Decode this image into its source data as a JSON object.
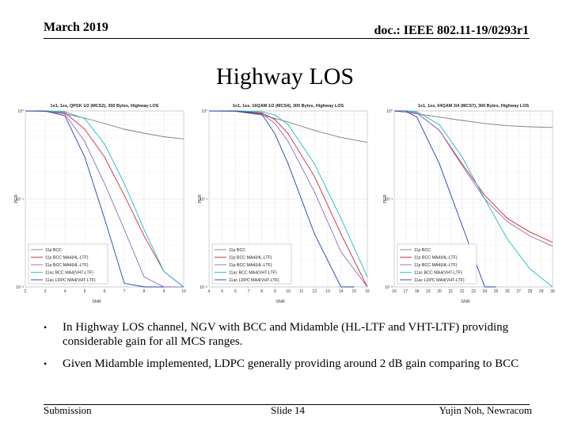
{
  "header": {
    "date": "March 2019",
    "doc_id": "doc.: IEEE 802.11-19/0293r1"
  },
  "slide_title": "Highway LOS",
  "colors": {
    "series": [
      "#7f7f7f",
      "#d62728",
      "#9467bd",
      "#17becf",
      "#1f3fbf",
      "#2b2b2b"
    ]
  },
  "chart_data": [
    {
      "type": "line",
      "title": "1x1, 1ss, QPSK 1/2 (MCS2), 300 Bytes, Highway LOS",
      "xlabel": "SNR",
      "ylabel": "PER",
      "xlim": [
        2,
        10
      ],
      "xticks": [
        2,
        3,
        4,
        5,
        6,
        7,
        8,
        9,
        10
      ],
      "ylim_log": [
        -2,
        0
      ],
      "yticks": [
        "10^0",
        "10^-1",
        "10^-2"
      ],
      "series": [
        {
          "name": "11p BCC",
          "x": [
            2,
            3,
            4,
            5,
            6,
            7,
            8,
            9,
            10
          ],
          "y": [
            1,
            0.99,
            0.93,
            0.83,
            0.72,
            0.62,
            0.56,
            0.51,
            0.48
          ]
        },
        {
          "name": "11p BCC MA4(HL-LTF)",
          "x": [
            2,
            3,
            4,
            5,
            6,
            7,
            8,
            9,
            10
          ],
          "y": [
            1,
            1,
            0.96,
            0.62,
            0.3,
            0.11,
            0.038,
            0.015,
            0.008
          ]
        },
        {
          "name": "11p BCC MA4(HL-LTF)",
          "x": [
            2,
            3,
            4,
            5,
            6,
            7,
            8,
            9,
            10
          ],
          "y": [
            1,
            1,
            0.92,
            0.45,
            0.15,
            0.045,
            0.013,
            0.005,
            0.002
          ]
        },
        {
          "name": "11ac BCC MA4(VHT-LTF)",
          "x": [
            2,
            3,
            4,
            5,
            6,
            7,
            8,
            9,
            10
          ],
          "y": [
            1,
            1,
            0.98,
            0.82,
            0.42,
            0.15,
            0.045,
            0.015,
            0.006
          ]
        },
        {
          "name": "11ac LDPC MA4(VHT-LTF)",
          "x": [
            2,
            3,
            4,
            5,
            6,
            7,
            8,
            9
          ],
          "y": [
            1,
            1,
            0.88,
            0.3,
            0.06,
            0.011,
            0.003,
            0.001
          ]
        }
      ]
    },
    {
      "type": "line",
      "title": "1x1, 1ss, 16QAM 1/2 (MCS4), 300 Bytes, Highway LOS",
      "xlabel": "SNR",
      "ylabel": "PER",
      "xlim": [
        4,
        16
      ],
      "xticks": [
        4,
        5,
        6,
        7,
        8,
        9,
        10,
        11,
        12,
        13,
        14,
        15,
        16
      ],
      "ylim_log": [
        -2,
        0
      ],
      "yticks": [
        "10^0",
        "10^-1",
        "10^-2"
      ],
      "series": [
        {
          "name": "11p BCC",
          "x": [
            4,
            6,
            8,
            10,
            12,
            14,
            16
          ],
          "y": [
            1,
            0.99,
            0.9,
            0.75,
            0.6,
            0.5,
            0.44
          ]
        },
        {
          "name": "11p BCC MA4(HL-LTF)",
          "x": [
            4,
            6,
            8,
            9,
            10,
            12,
            14,
            16
          ],
          "y": [
            1,
            1,
            0.95,
            0.8,
            0.55,
            0.18,
            0.04,
            0.009
          ]
        },
        {
          "name": "11p BCC MA4(HL-LTF)",
          "x": [
            4,
            6,
            8,
            9,
            10,
            12,
            14,
            16
          ],
          "y": [
            1,
            1,
            0.93,
            0.72,
            0.45,
            0.12,
            0.025,
            0.006
          ]
        },
        {
          "name": "11ac BCC MA4(VHT-LTF)",
          "x": [
            4,
            6,
            8,
            9,
            10,
            12,
            14,
            16
          ],
          "y": [
            1,
            1,
            0.98,
            0.9,
            0.7,
            0.25,
            0.06,
            0.013
          ]
        },
        {
          "name": "11ac LDPC MA4(VHT-LTF)",
          "x": [
            4,
            6,
            8,
            9,
            10,
            12,
            14,
            15
          ],
          "y": [
            1,
            1,
            0.92,
            0.55,
            0.25,
            0.04,
            0.006,
            0.002
          ]
        }
      ]
    },
    {
      "type": "line",
      "title": "1x1, 1ss, 64QAM 3/4 (MCS7), 300 Bytes, Highway LOS",
      "xlabel": "SNR",
      "ylabel": "PER",
      "xlim": [
        16,
        30
      ],
      "xticks": [
        16,
        17,
        18,
        19,
        20,
        21,
        22,
        23,
        24,
        25,
        26,
        27,
        28,
        29,
        30
      ],
      "ylim_log": [
        -2,
        0
      ],
      "yticks": [
        "10^0",
        "10^-1",
        "10^-2"
      ],
      "series": [
        {
          "name": "11p BCC",
          "x": [
            16,
            18,
            20,
            22,
            24,
            26,
            28,
            30
          ],
          "y": [
            1,
            0.93,
            0.85,
            0.78,
            0.72,
            0.68,
            0.66,
            0.65
          ]
        },
        {
          "name": "11p BCC MA4(HL-LTF)",
          "x": [
            16,
            17,
            18,
            20,
            22,
            24,
            26,
            28,
            30
          ],
          "y": [
            1,
            1,
            0.95,
            0.6,
            0.25,
            0.11,
            0.06,
            0.042,
            0.032
          ]
        },
        {
          "name": "11p BCC MA4(HL-LTF)",
          "x": [
            16,
            17,
            18,
            20,
            22,
            24,
            26,
            28,
            30
          ],
          "y": [
            1,
            1,
            0.95,
            0.6,
            0.24,
            0.1,
            0.055,
            0.038,
            0.029
          ]
        },
        {
          "name": "11ac BCC MA4(VHT-LTF)",
          "x": [
            16,
            17,
            18,
            20,
            22,
            24,
            26,
            28,
            30
          ],
          "y": [
            1,
            1,
            0.98,
            0.7,
            0.3,
            0.1,
            0.035,
            0.016,
            0.009
          ]
        },
        {
          "name": "11ac LDPC MA4(VHT-LTF)",
          "x": [
            16,
            17,
            18,
            20,
            22,
            24,
            25
          ],
          "y": [
            1,
            1,
            0.85,
            0.25,
            0.05,
            0.009,
            0.004
          ]
        }
      ]
    }
  ],
  "legend_labels": [
    "11p BCC",
    "11p BCC MA4(HL-LTF)",
    "11p BCC MA4(HL-LTF)",
    "11ac BCC MA4(VHT-LTF)",
    "11ac LDPC MA4(VHT-LTF)"
  ],
  "bullets": [
    "In Highway LOS channel, NGV with BCC and Midamble (HL-LTF and VHT-LTF) providing considerable gain for all MCS ranges.",
    "Given Midamble implemented, LDPC generally providing around 2 dB gain comparing to BCC"
  ],
  "footer": {
    "left": "Submission",
    "center": "Slide 14",
    "right": "Yujin Noh, Newracom"
  }
}
